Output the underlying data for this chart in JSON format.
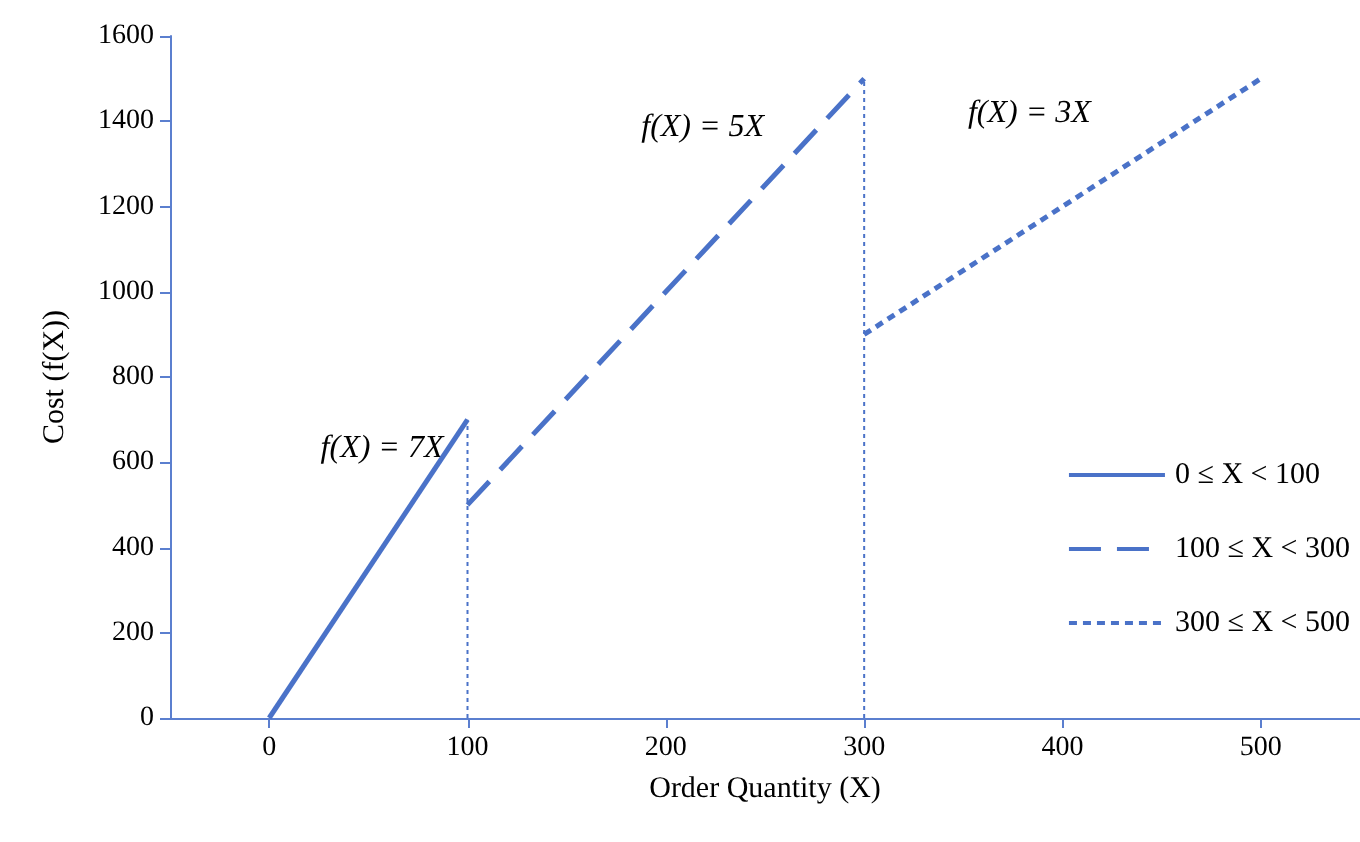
{
  "chart_data": {
    "type": "line",
    "xlabel": "Order Quantity (X)",
    "ylabel": "Cost (f(X))",
    "xlim": [
      -50,
      550
    ],
    "xticks": [
      0,
      100,
      200,
      300,
      400,
      500
    ],
    "ylim": [
      0,
      1600
    ],
    "yticks": [
      0,
      200,
      400,
      600,
      800,
      1000,
      1200,
      1400,
      1600
    ],
    "grid": false,
    "legend": "right",
    "marker": "none",
    "series": [
      {
        "name": "0 ≤ X < 100",
        "color": "#4a72c8",
        "x": [
          0,
          100
        ],
        "values": [
          0,
          700
        ],
        "line_style": "solid"
      },
      {
        "name": "100 ≤ X < 300",
        "color": "#4a72c8",
        "x": [
          100,
          300
        ],
        "values": [
          500,
          1500
        ],
        "line_style": "dashed"
      },
      {
        "name": "300 ≤ X < 500",
        "color": "#4a72c8",
        "x": [
          300,
          500
        ],
        "values": [
          900,
          1500
        ],
        "line_style": "dotted"
      },
      {
        "color": "#4a72c8",
        "x": [
          100,
          100
        ],
        "values": [
          0,
          700
        ],
        "line_style": "dotted"
      },
      {
        "color": "#4a72c8",
        "x": [
          300,
          300
        ],
        "values": [
          0,
          1500
        ],
        "line_style": "dotted"
      }
    ],
    "annotations": [
      "f(X) = 7X",
      "f(X) = 5X",
      "f(X) = 3X"
    ]
  }
}
